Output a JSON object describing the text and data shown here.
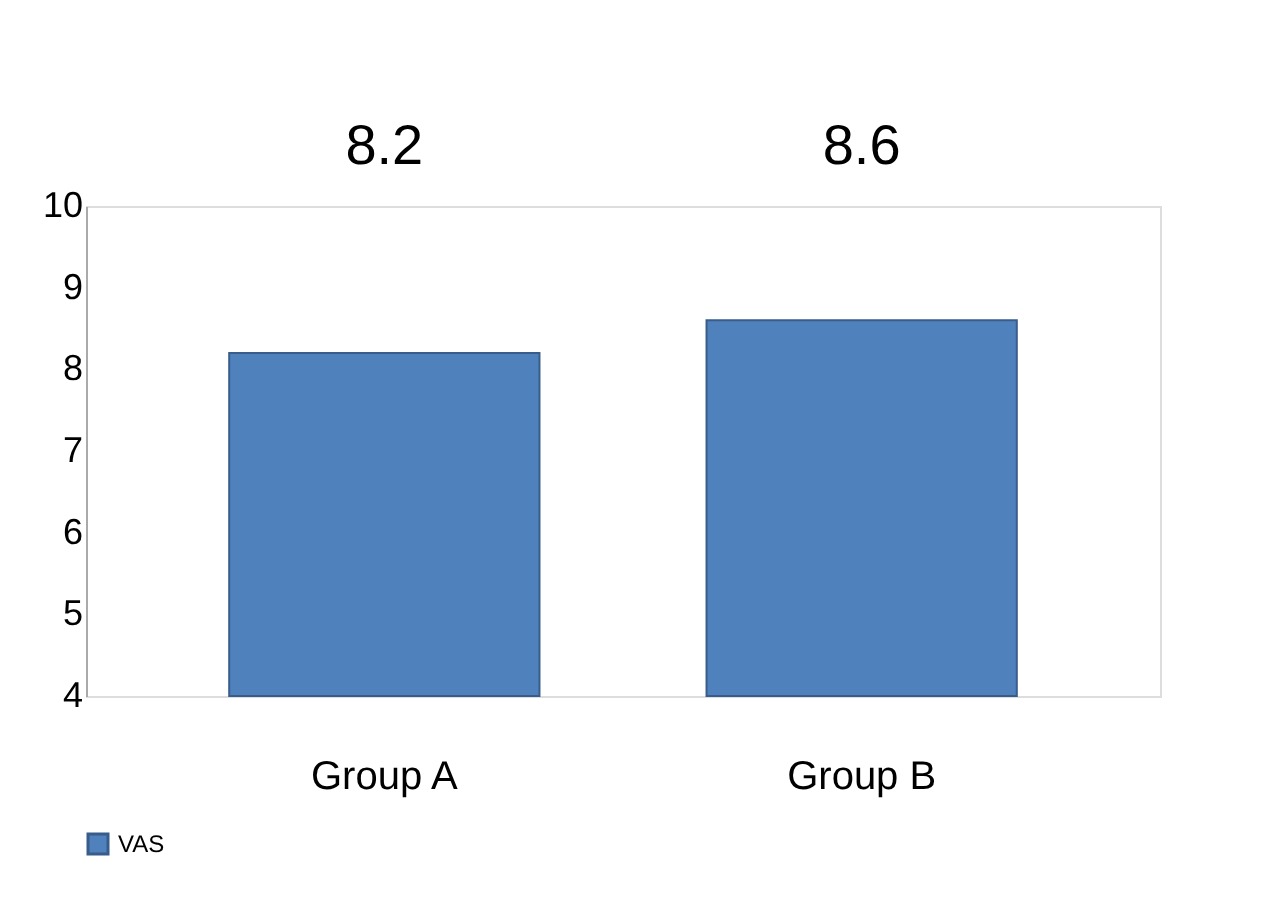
{
  "chart_data": {
    "type": "bar",
    "categories": [
      "Group A",
      "Group B"
    ],
    "series": [
      {
        "name": "VAS",
        "color": "#4f81bd",
        "values": [
          8.2,
          8.6
        ]
      }
    ],
    "ylim": [
      4,
      10
    ],
    "yticks": [
      4,
      5,
      6,
      7,
      8,
      9,
      10
    ],
    "grid": false,
    "legend": "bottom",
    "data_labels": true
  }
}
